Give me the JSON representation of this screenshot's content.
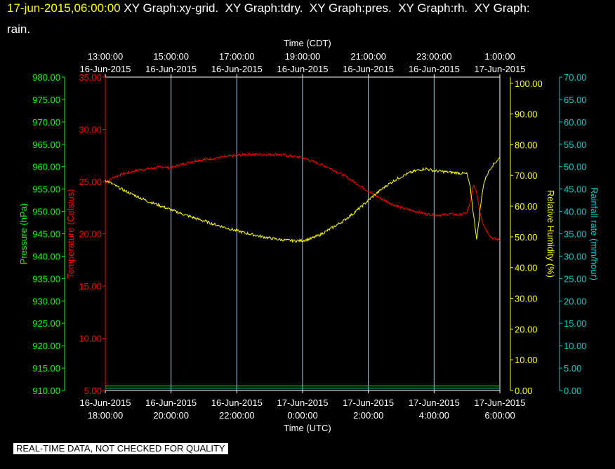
{
  "header": {
    "timestamp": "17-jun-2015,06:00:00",
    "title_rest": " XY Graph:xy-grid.  XY Graph:tdry.  XY Graph:pres.  XY Graph:rh.  XY Graph:",
    "title_wrap": "rain."
  },
  "footer": {
    "notice": "REAL-TIME DATA, NOT CHECKED FOR QUALITY"
  },
  "colors": {
    "pressure": "#00ff00",
    "temperature": "#ff0000",
    "humidity": "#ffff00",
    "rainfall": "#00cccc",
    "grid": "#aac8e6",
    "frame": "#ffffff",
    "background": "#000000"
  },
  "chart_data": {
    "type": "line",
    "grid": true,
    "x_axes": {
      "top": {
        "label": "Time (CDT)",
        "ticks": [
          [
            "13:00:00",
            "16-Jun-2015"
          ],
          [
            "15:00:00",
            "16-Jun-2015"
          ],
          [
            "17:00:00",
            "16-Jun-2015"
          ],
          [
            "19:00:00",
            "16-Jun-2015"
          ],
          [
            "21:00:00",
            "16-Jun-2015"
          ],
          [
            "23:00:00",
            "16-Jun-2015"
          ],
          [
            "1:00:00",
            "17-Jun-2015"
          ]
        ]
      },
      "bottom": {
        "label": "Time (UTC)",
        "ticks": [
          [
            "16-Jun-2015",
            "18:00:00"
          ],
          [
            "16-Jun-2015",
            "20:00:00"
          ],
          [
            "16-Jun-2015",
            "22:00:00"
          ],
          [
            "17-Jun-2015",
            "0:00:00"
          ],
          [
            "17-Jun-2015",
            "2:00:00"
          ],
          [
            "17-Jun-2015",
            "4:00:00"
          ],
          [
            "17-Jun-2015",
            "6:00:00"
          ]
        ]
      },
      "range_hours_utc": [
        18,
        30
      ]
    },
    "y_axes": {
      "pressure": {
        "label": "Pressure (hPa)",
        "ylim": [
          910,
          980
        ],
        "ticks": [
          "910.00",
          "915.00",
          "920.00",
          "925.00",
          "930.00",
          "935.00",
          "940.00",
          "945.00",
          "950.00",
          "955.00",
          "960.00",
          "965.00",
          "970.00",
          "975.00",
          "980.00"
        ]
      },
      "temperature": {
        "label": "Temperature (Celsius)",
        "ylim": [
          5,
          35
        ],
        "ticks": [
          "5.00",
          "10.00",
          "15.00",
          "20.00",
          "25.00",
          "30.00",
          "35.00"
        ]
      },
      "humidity": {
        "label": "Relative Humidity (%)",
        "ylim": [
          0,
          102
        ],
        "ticks": [
          "0.00",
          "10.00",
          "20.00",
          "30.00",
          "40.00",
          "50.00",
          "60.00",
          "70.00",
          "80.00",
          "90.00",
          "100.00"
        ]
      },
      "rainfall": {
        "label": "Rainfall rate (mm/hour)",
        "ylim": [
          0,
          70
        ],
        "ticks": [
          "0.00",
          "5.00",
          "10.00",
          "15.00",
          "20.00",
          "25.00",
          "30.00",
          "35.00",
          "40.00",
          "45.00",
          "50.00",
          "55.00",
          "60.00",
          "65.00",
          "70.00"
        ]
      }
    },
    "series": [
      {
        "name": "Temperature (Celsius)",
        "axis": "temperature",
        "x": [
          18,
          18.25,
          18.5,
          18.75,
          19,
          19.25,
          19.5,
          19.75,
          20,
          20.25,
          20.5,
          20.75,
          21,
          21.25,
          21.5,
          21.75,
          22,
          22.25,
          22.5,
          22.75,
          23,
          23.25,
          23.5,
          23.75,
          24,
          24.25,
          24.5,
          24.75,
          25,
          25.25,
          25.5,
          25.75,
          26,
          26.25,
          26.5,
          26.75,
          27,
          27.25,
          27.5,
          27.75,
          28,
          28.25,
          28.5,
          28.75,
          29,
          29.1,
          29.2,
          29.3,
          29.4,
          29.5,
          29.6,
          29.75,
          30
        ],
        "values": [
          24.9,
          25.4,
          25.7,
          25.9,
          26.1,
          26.2,
          26.3,
          26.4,
          26.3,
          26.6,
          26.8,
          27.0,
          27.1,
          27.2,
          27.3,
          27.4,
          27.5,
          27.6,
          27.6,
          27.6,
          27.6,
          27.6,
          27.5,
          27.4,
          27.3,
          27.0,
          26.7,
          26.4,
          26.0,
          25.6,
          25.1,
          24.6,
          24.1,
          23.6,
          23.2,
          22.8,
          22.5,
          22.3,
          22.1,
          21.9,
          21.8,
          21.8,
          21.9,
          21.8,
          22.0,
          23.0,
          24.7,
          23.9,
          22.0,
          20.9,
          20.3,
          19.6,
          19.4
        ]
      },
      {
        "name": "Relative Humidity (%)",
        "axis": "humidity",
        "x": [
          18,
          18.25,
          18.5,
          18.75,
          19,
          19.25,
          19.5,
          19.75,
          20,
          20.25,
          20.5,
          20.75,
          21,
          21.25,
          21.5,
          21.75,
          22,
          22.25,
          22.5,
          22.75,
          23,
          23.25,
          23.5,
          23.75,
          24,
          24.25,
          24.5,
          24.75,
          25,
          25.25,
          25.5,
          25.75,
          26,
          26.25,
          26.5,
          26.75,
          27,
          27.25,
          27.5,
          27.75,
          28,
          28.25,
          28.5,
          28.75,
          29,
          29.1,
          29.2,
          29.3,
          29.4,
          29.5,
          29.6,
          29.75,
          30
        ],
        "values": [
          68.5,
          67.0,
          65.5,
          64.2,
          63.0,
          61.8,
          60.8,
          59.8,
          58.8,
          57.8,
          56.9,
          56.0,
          55.2,
          54.3,
          53.5,
          52.7,
          52.0,
          51.3,
          50.7,
          50.1,
          49.6,
          49.2,
          48.9,
          48.7,
          48.8,
          49.4,
          50.5,
          52.0,
          53.6,
          55.3,
          57.3,
          59.5,
          61.9,
          64.2,
          66.3,
          68.1,
          69.6,
          70.8,
          71.7,
          72.2,
          71.5,
          71.3,
          71.0,
          70.8,
          70.5,
          66.0,
          57.0,
          49.0,
          59.0,
          67.0,
          70.0,
          73.0,
          75.8
        ]
      },
      {
        "name": "Pressure (hPa)",
        "axis": "pressure",
        "x": [
          18,
          30
        ],
        "values": [
          911,
          911
        ]
      },
      {
        "name": "Rainfall rate (mm/hour)",
        "axis": "rainfall",
        "x": [
          18,
          30
        ],
        "values": [
          0.5,
          0.5
        ]
      }
    ]
  }
}
